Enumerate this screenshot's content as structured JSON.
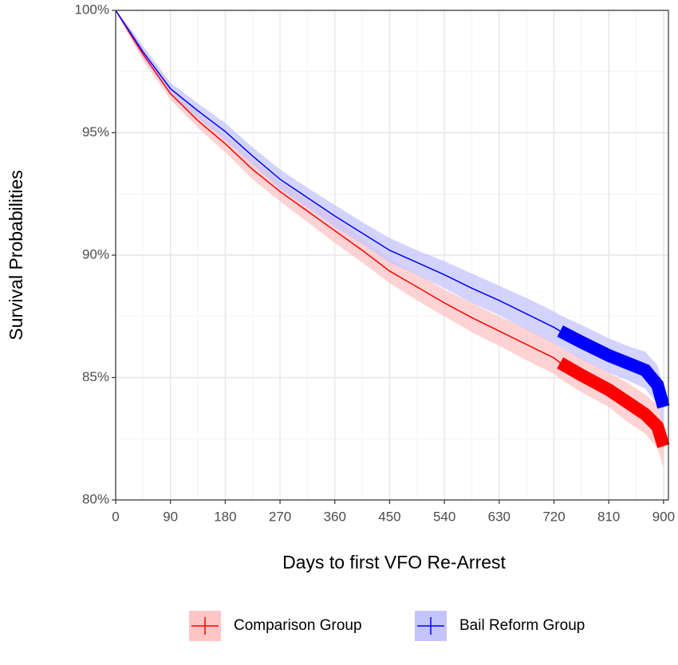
{
  "chart_data": {
    "type": "survival",
    "xlabel": "Days to first VFO Re-Arrest",
    "ylabel": "Survival Probabilities",
    "xlim": [
      0,
      908
    ],
    "ylim": [
      80,
      100
    ],
    "xticks": [
      0,
      90,
      180,
      270,
      360,
      450,
      540,
      630,
      720,
      810,
      900
    ],
    "yticks": [
      {
        "value": 80,
        "label": "80%"
      },
      {
        "value": 85,
        "label": "85%"
      },
      {
        "value": 90,
        "label": "90%"
      },
      {
        "value": 95,
        "label": "95%"
      },
      {
        "value": 100,
        "label": "100%"
      }
    ],
    "xminorticks": [
      45,
      135,
      225,
      315,
      405,
      495,
      585,
      675,
      765,
      855
    ],
    "yminorticks": [
      82.5,
      87.5,
      92.5,
      97.5
    ],
    "grid": true,
    "legend": "bottom",
    "censored_from": 730,
    "x": [
      0,
      20,
      45,
      90,
      135,
      180,
      225,
      270,
      315,
      360,
      405,
      450,
      495,
      540,
      585,
      630,
      675,
      720,
      730,
      765,
      810,
      840,
      870,
      890,
      900
    ],
    "series": [
      {
        "name": "Comparison Group",
        "color": "#ff0000",
        "band_color": "#ffc4c4",
        "values": [
          100,
          99.2,
          98.2,
          96.6,
          95.5,
          94.55,
          93.5,
          92.6,
          91.8,
          91.0,
          90.2,
          89.35,
          88.7,
          88.05,
          87.45,
          86.9,
          86.35,
          85.8,
          85.6,
          85.1,
          84.5,
          84.0,
          83.5,
          83.0,
          82.2
        ],
        "lower": [
          100,
          99.05,
          97.95,
          96.35,
          95.2,
          94.2,
          93.1,
          92.2,
          91.35,
          90.5,
          89.7,
          88.85,
          88.15,
          87.5,
          86.85,
          86.3,
          85.7,
          85.15,
          84.95,
          84.4,
          83.8,
          83.2,
          82.7,
          82.1,
          81.3
        ],
        "upper": [
          100,
          99.35,
          98.45,
          96.85,
          95.8,
          94.9,
          93.9,
          93.0,
          92.25,
          91.5,
          90.7,
          89.85,
          89.25,
          88.6,
          88.05,
          87.5,
          87.0,
          86.45,
          86.25,
          85.8,
          85.2,
          84.8,
          84.3,
          83.9,
          83.1
        ]
      },
      {
        "name": "Bail Reform Group",
        "color": "#0000ff",
        "band_color": "#c4c4ff",
        "values": [
          100,
          99.25,
          98.3,
          96.8,
          95.9,
          95.05,
          94.05,
          93.1,
          92.35,
          91.6,
          90.9,
          90.2,
          89.7,
          89.2,
          88.65,
          88.15,
          87.6,
          87.05,
          86.9,
          86.45,
          85.9,
          85.6,
          85.3,
          84.7,
          83.8
        ],
        "lower": [
          100,
          99.1,
          98.05,
          96.55,
          95.6,
          94.7,
          93.7,
          92.7,
          91.95,
          91.15,
          90.45,
          89.7,
          89.2,
          88.65,
          88.05,
          87.55,
          86.95,
          86.4,
          86.25,
          85.75,
          85.2,
          84.9,
          84.55,
          83.9,
          83.0
        ],
        "upper": [
          100,
          99.4,
          98.55,
          97.05,
          96.2,
          95.4,
          94.4,
          93.5,
          92.75,
          92.05,
          91.35,
          90.7,
          90.2,
          89.75,
          89.25,
          88.75,
          88.25,
          87.7,
          87.55,
          87.15,
          86.6,
          86.3,
          86.05,
          85.5,
          84.6
        ]
      }
    ]
  }
}
